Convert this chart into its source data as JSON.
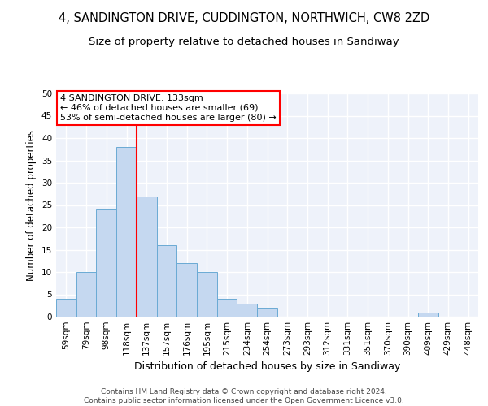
{
  "title": "4, SANDINGTON DRIVE, CUDDINGTON, NORTHWICH, CW8 2ZD",
  "subtitle": "Size of property relative to detached houses in Sandiway",
  "xlabel": "Distribution of detached houses by size in Sandiway",
  "ylabel": "Number of detached properties",
  "bar_labels": [
    "59sqm",
    "79sqm",
    "98sqm",
    "118sqm",
    "137sqm",
    "157sqm",
    "176sqm",
    "195sqm",
    "215sqm",
    "234sqm",
    "254sqm",
    "273sqm",
    "293sqm",
    "312sqm",
    "331sqm",
    "351sqm",
    "370sqm",
    "390sqm",
    "409sqm",
    "429sqm",
    "448sqm"
  ],
  "bar_values": [
    4,
    10,
    24,
    38,
    27,
    16,
    12,
    10,
    4,
    3,
    2,
    0,
    0,
    0,
    0,
    0,
    0,
    0,
    1,
    0,
    0
  ],
  "bar_color": "#c5d8f0",
  "bar_edge_color": "#6aaad4",
  "vline_x_index": 3.5,
  "vline_color": "red",
  "annotation_text": "4 SANDINGTON DRIVE: 133sqm\n← 46% of detached houses are smaller (69)\n53% of semi-detached houses are larger (80) →",
  "annotation_box_color": "white",
  "annotation_box_edge_color": "red",
  "ylim": [
    0,
    50
  ],
  "yticks": [
    0,
    5,
    10,
    15,
    20,
    25,
    30,
    35,
    40,
    45,
    50
  ],
  "footer_text": "Contains HM Land Registry data © Crown copyright and database right 2024.\nContains public sector information licensed under the Open Government Licence v3.0.",
  "background_color": "#eef2fa",
  "grid_color": "white",
  "title_fontsize": 10.5,
  "subtitle_fontsize": 9.5,
  "xlabel_fontsize": 9,
  "ylabel_fontsize": 8.5,
  "tick_fontsize": 7.5,
  "annotation_fontsize": 8,
  "footer_fontsize": 6.5
}
